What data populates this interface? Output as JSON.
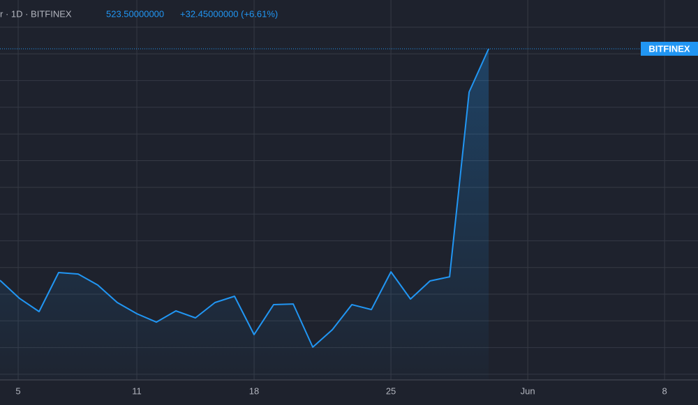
{
  "chart_data": {
    "type": "line",
    "title": "r · 1D · BITFINEX",
    "last_price_label": "523.50000000",
    "change_label": "+32.45000000 (+6.61%)",
    "x": [
      0,
      1,
      2,
      3,
      4,
      5,
      6,
      7,
      8,
      9,
      10,
      11,
      12,
      13,
      14,
      15,
      16,
      17,
      18,
      19,
      20,
      21,
      22,
      23,
      24,
      25
    ],
    "series": [
      {
        "name": "BITFINEX",
        "color": "#2196f3",
        "values": [
          349.7,
          336.1,
          326.2,
          355.5,
          354.4,
          346.1,
          333.0,
          324.6,
          318.3,
          326.7,
          321.5,
          333.0,
          337.7,
          308.9,
          331.4,
          331.9,
          299.5,
          312.6,
          331.4,
          327.7,
          356.0,
          335.6,
          349.2,
          352.3,
          491.05,
          523.5
        ]
      }
    ],
    "xlim": [
      0,
      35.71
    ],
    "xticks": [
      {
        "value": 0.93,
        "label": "5"
      },
      {
        "value": 7,
        "label": "11"
      },
      {
        "value": 13,
        "label": "18"
      },
      {
        "value": 20,
        "label": "25"
      },
      {
        "value": 27,
        "label": "Jun"
      },
      {
        "value": 34,
        "label": "8"
      }
    ],
    "ylim": [
      274.9,
      560.1
    ],
    "grid": true
  }
}
